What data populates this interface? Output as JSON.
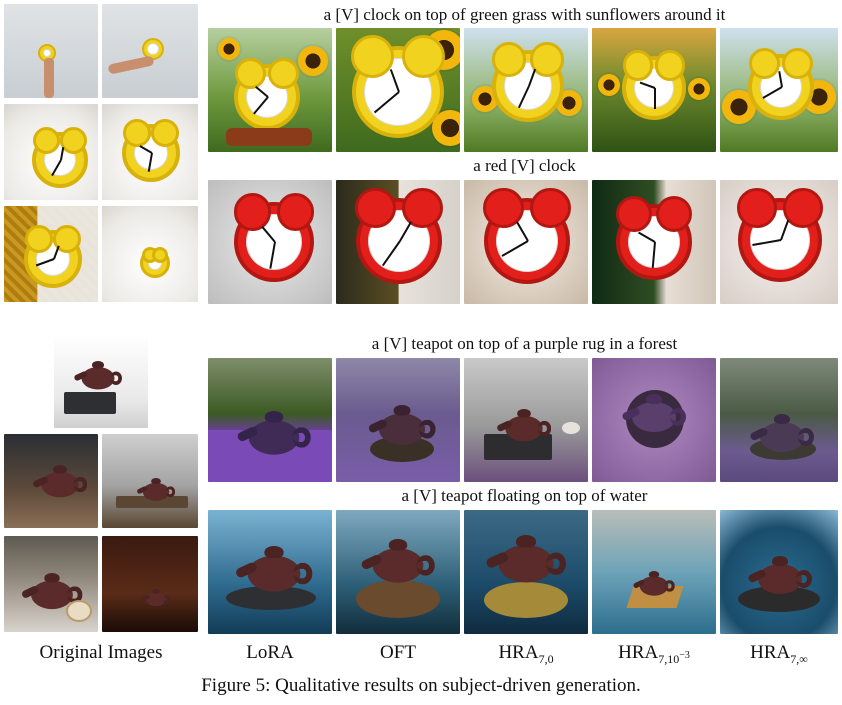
{
  "figure": {
    "caption": "Figure 5: Qualitative results on subject-driven generation.",
    "prompts": {
      "clock_sunflowers": "a [V] clock on top of green grass with sunflowers around it",
      "clock_red": "a red [V] clock",
      "teapot_forest": "a [V] teapot on top of a purple rug in a forest",
      "teapot_water": "a [V] teapot floating on top of water"
    },
    "column_labels": {
      "original": "Original Images",
      "lora": "LoRA",
      "oft": "OFT",
      "hra_0": {
        "base": "HRA",
        "sub": "7,0"
      },
      "hra_1e3": {
        "base": "HRA",
        "sub_prefix": "7,10",
        "sup": "−3"
      },
      "hra_inf": {
        "base": "HRA",
        "sub": "7,∞"
      }
    }
  },
  "colors": {
    "clock_yellow": "#f1d21e",
    "clock_red": "#e21f1a",
    "teapot": "#5a2b2a",
    "purple_rug": "#7f5a95",
    "water": "#2f6b8f"
  }
}
